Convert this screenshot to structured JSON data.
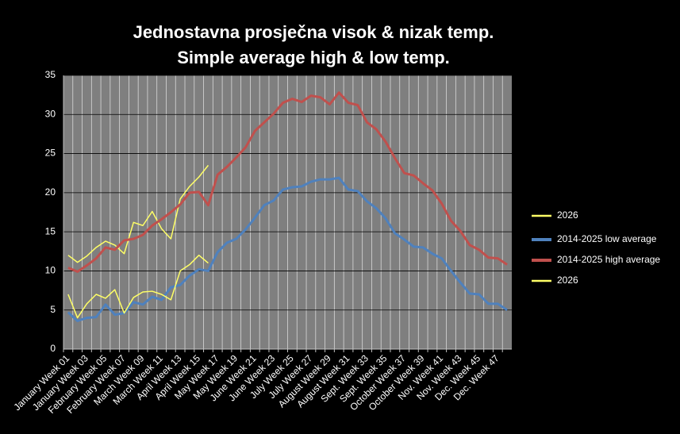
{
  "chart_data": {
    "type": "line",
    "title": "Jednostavna prosječna visok & nizak temp.",
    "subtitle": "Simple average high & low temp.",
    "categories": [
      "January Week 01",
      null,
      "January Week 03",
      null,
      "February Week 05",
      null,
      "February Week 07",
      null,
      "March Week 09",
      null,
      "March Week 11",
      null,
      "April Week 13",
      null,
      "April Week 15",
      null,
      "May Week 17",
      null,
      "May Week 19",
      null,
      "June Week 21",
      null,
      "June Week 23",
      null,
      "July Week 25",
      null,
      "July Week 27",
      null,
      "August Week 29",
      null,
      "August Week 31",
      null,
      "Sept. Week 33",
      null,
      "Sept. Week 35",
      null,
      "October Week 37",
      null,
      "October Week 39",
      null,
      "Nov. Week 41",
      null,
      "Nov. Week 43",
      null,
      "Dec. Week 45",
      null,
      "Dec. Week 47",
      null
    ],
    "series": [
      {
        "name": "2026",
        "color": "#ffff66",
        "width": 1.5,
        "values": [
          12.0,
          11.1,
          11.9,
          13.0,
          13.8,
          13.3,
          12.2,
          16.2,
          15.8,
          17.6,
          15.4,
          14.1,
          19.2,
          20.8,
          22.0,
          23.5,
          null,
          null,
          null,
          null,
          null,
          null,
          null,
          null,
          null,
          null,
          null,
          null,
          null,
          null,
          null,
          null,
          null,
          null,
          null,
          null,
          null,
          null,
          null,
          null,
          null,
          null,
          null,
          null,
          null,
          null,
          null,
          null
        ]
      },
      {
        "name": "2014-2025 low average",
        "color": "#4f81bd",
        "width": 3,
        "values": [
          4.7,
          3.6,
          4.0,
          4.1,
          5.7,
          4.4,
          4.6,
          6.0,
          5.7,
          6.7,
          6.3,
          7.9,
          8.2,
          9.4,
          10.2,
          10.0,
          12.4,
          13.6,
          14.1,
          15.3,
          16.8,
          18.4,
          19.0,
          20.4,
          20.7,
          20.8,
          21.4,
          21.7,
          21.7,
          21.9,
          20.4,
          20.2,
          18.9,
          18.0,
          16.7,
          14.8,
          14.0,
          13.1,
          13.0,
          12.2,
          11.6,
          10.0,
          8.5,
          7.1,
          7.0,
          5.8,
          5.8,
          5.0
        ]
      },
      {
        "name": "2014-2025 high average",
        "color": "#c0504d",
        "width": 3,
        "values": [
          10.4,
          9.9,
          10.7,
          11.6,
          13.0,
          12.7,
          13.9,
          14.1,
          14.6,
          15.8,
          16.6,
          17.5,
          18.5,
          20.0,
          20.1,
          18.4,
          22.3,
          23.3,
          24.5,
          25.8,
          27.9,
          29.0,
          30.1,
          31.5,
          32.0,
          31.6,
          32.4,
          32.2,
          31.3,
          32.8,
          31.5,
          31.2,
          29.0,
          28.1,
          26.5,
          24.4,
          22.5,
          22.2,
          21.2,
          20.3,
          18.6,
          16.4,
          15.1,
          13.3,
          12.7,
          11.7,
          11.6,
          10.8
        ]
      },
      {
        "name": "2026",
        "color": "#ffff66",
        "width": 1.5,
        "values": [
          7.0,
          4.0,
          5.8,
          7.0,
          6.5,
          7.6,
          4.6,
          6.6,
          7.3,
          7.4,
          7.0,
          6.3,
          10.0,
          10.8,
          12.0,
          11.0,
          null,
          null,
          null,
          null,
          null,
          null,
          null,
          null,
          null,
          null,
          null,
          null,
          null,
          null,
          null,
          null,
          null,
          null,
          null,
          null,
          null,
          null,
          null,
          null,
          null,
          null,
          null,
          null,
          null,
          null,
          null,
          null
        ]
      }
    ],
    "ylim": [
      0,
      35
    ],
    "yticks": [
      0,
      5,
      10,
      15,
      20,
      25,
      30,
      35
    ],
    "grid": true,
    "legend": "right"
  }
}
